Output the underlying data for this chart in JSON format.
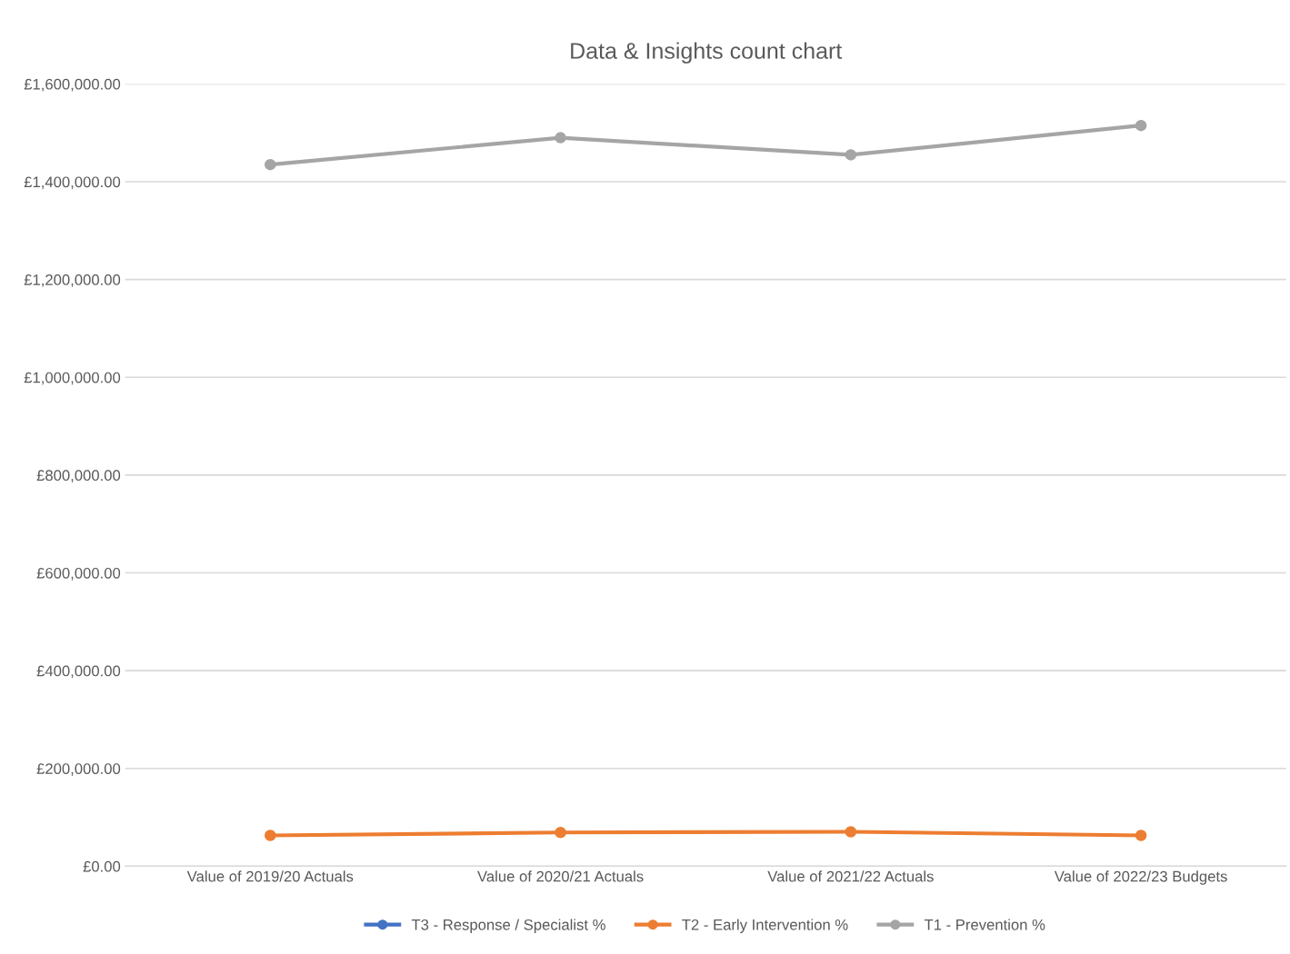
{
  "chart_data": {
    "type": "line",
    "title": "Data & Insights count chart",
    "categories": [
      "Value of 2019/20 Actuals",
      "Value of 2020/21 Actuals",
      "Value of 2021/22 Actuals",
      "Value of 2022/23 Budgets"
    ],
    "series": [
      {
        "name": "T3 - Response / Specialist %",
        "color": "#4472c4",
        "values": [
          null,
          null,
          null,
          null
        ]
      },
      {
        "name": "T2 - Early Intervention %",
        "color": "#ed7d31",
        "values": [
          63000,
          69000,
          70500,
          63000
        ]
      },
      {
        "name": "T1 - Prevention %",
        "color": "#a5a5a5",
        "values": [
          1435000,
          1490000,
          1455000,
          1515000
        ]
      }
    ],
    "ylim": [
      0,
      1600000
    ],
    "yticks": [
      {
        "value": 0,
        "label": "£0.00"
      },
      {
        "value": 200000,
        "label": "£200,000.00"
      },
      {
        "value": 400000,
        "label": "£400,000.00"
      },
      {
        "value": 600000,
        "label": "£600,000.00"
      },
      {
        "value": 800000,
        "label": "£800,000.00"
      },
      {
        "value": 1000000,
        "label": "£1,000,000.00"
      },
      {
        "value": 1200000,
        "label": "£1,200,000.00"
      },
      {
        "value": 1400000,
        "label": "£1,400,000.00"
      },
      {
        "value": 1600000,
        "label": "£1,600,000.00"
      }
    ],
    "grid": "y",
    "legend": "bottom",
    "marker": "circle",
    "line_style": "solid"
  }
}
